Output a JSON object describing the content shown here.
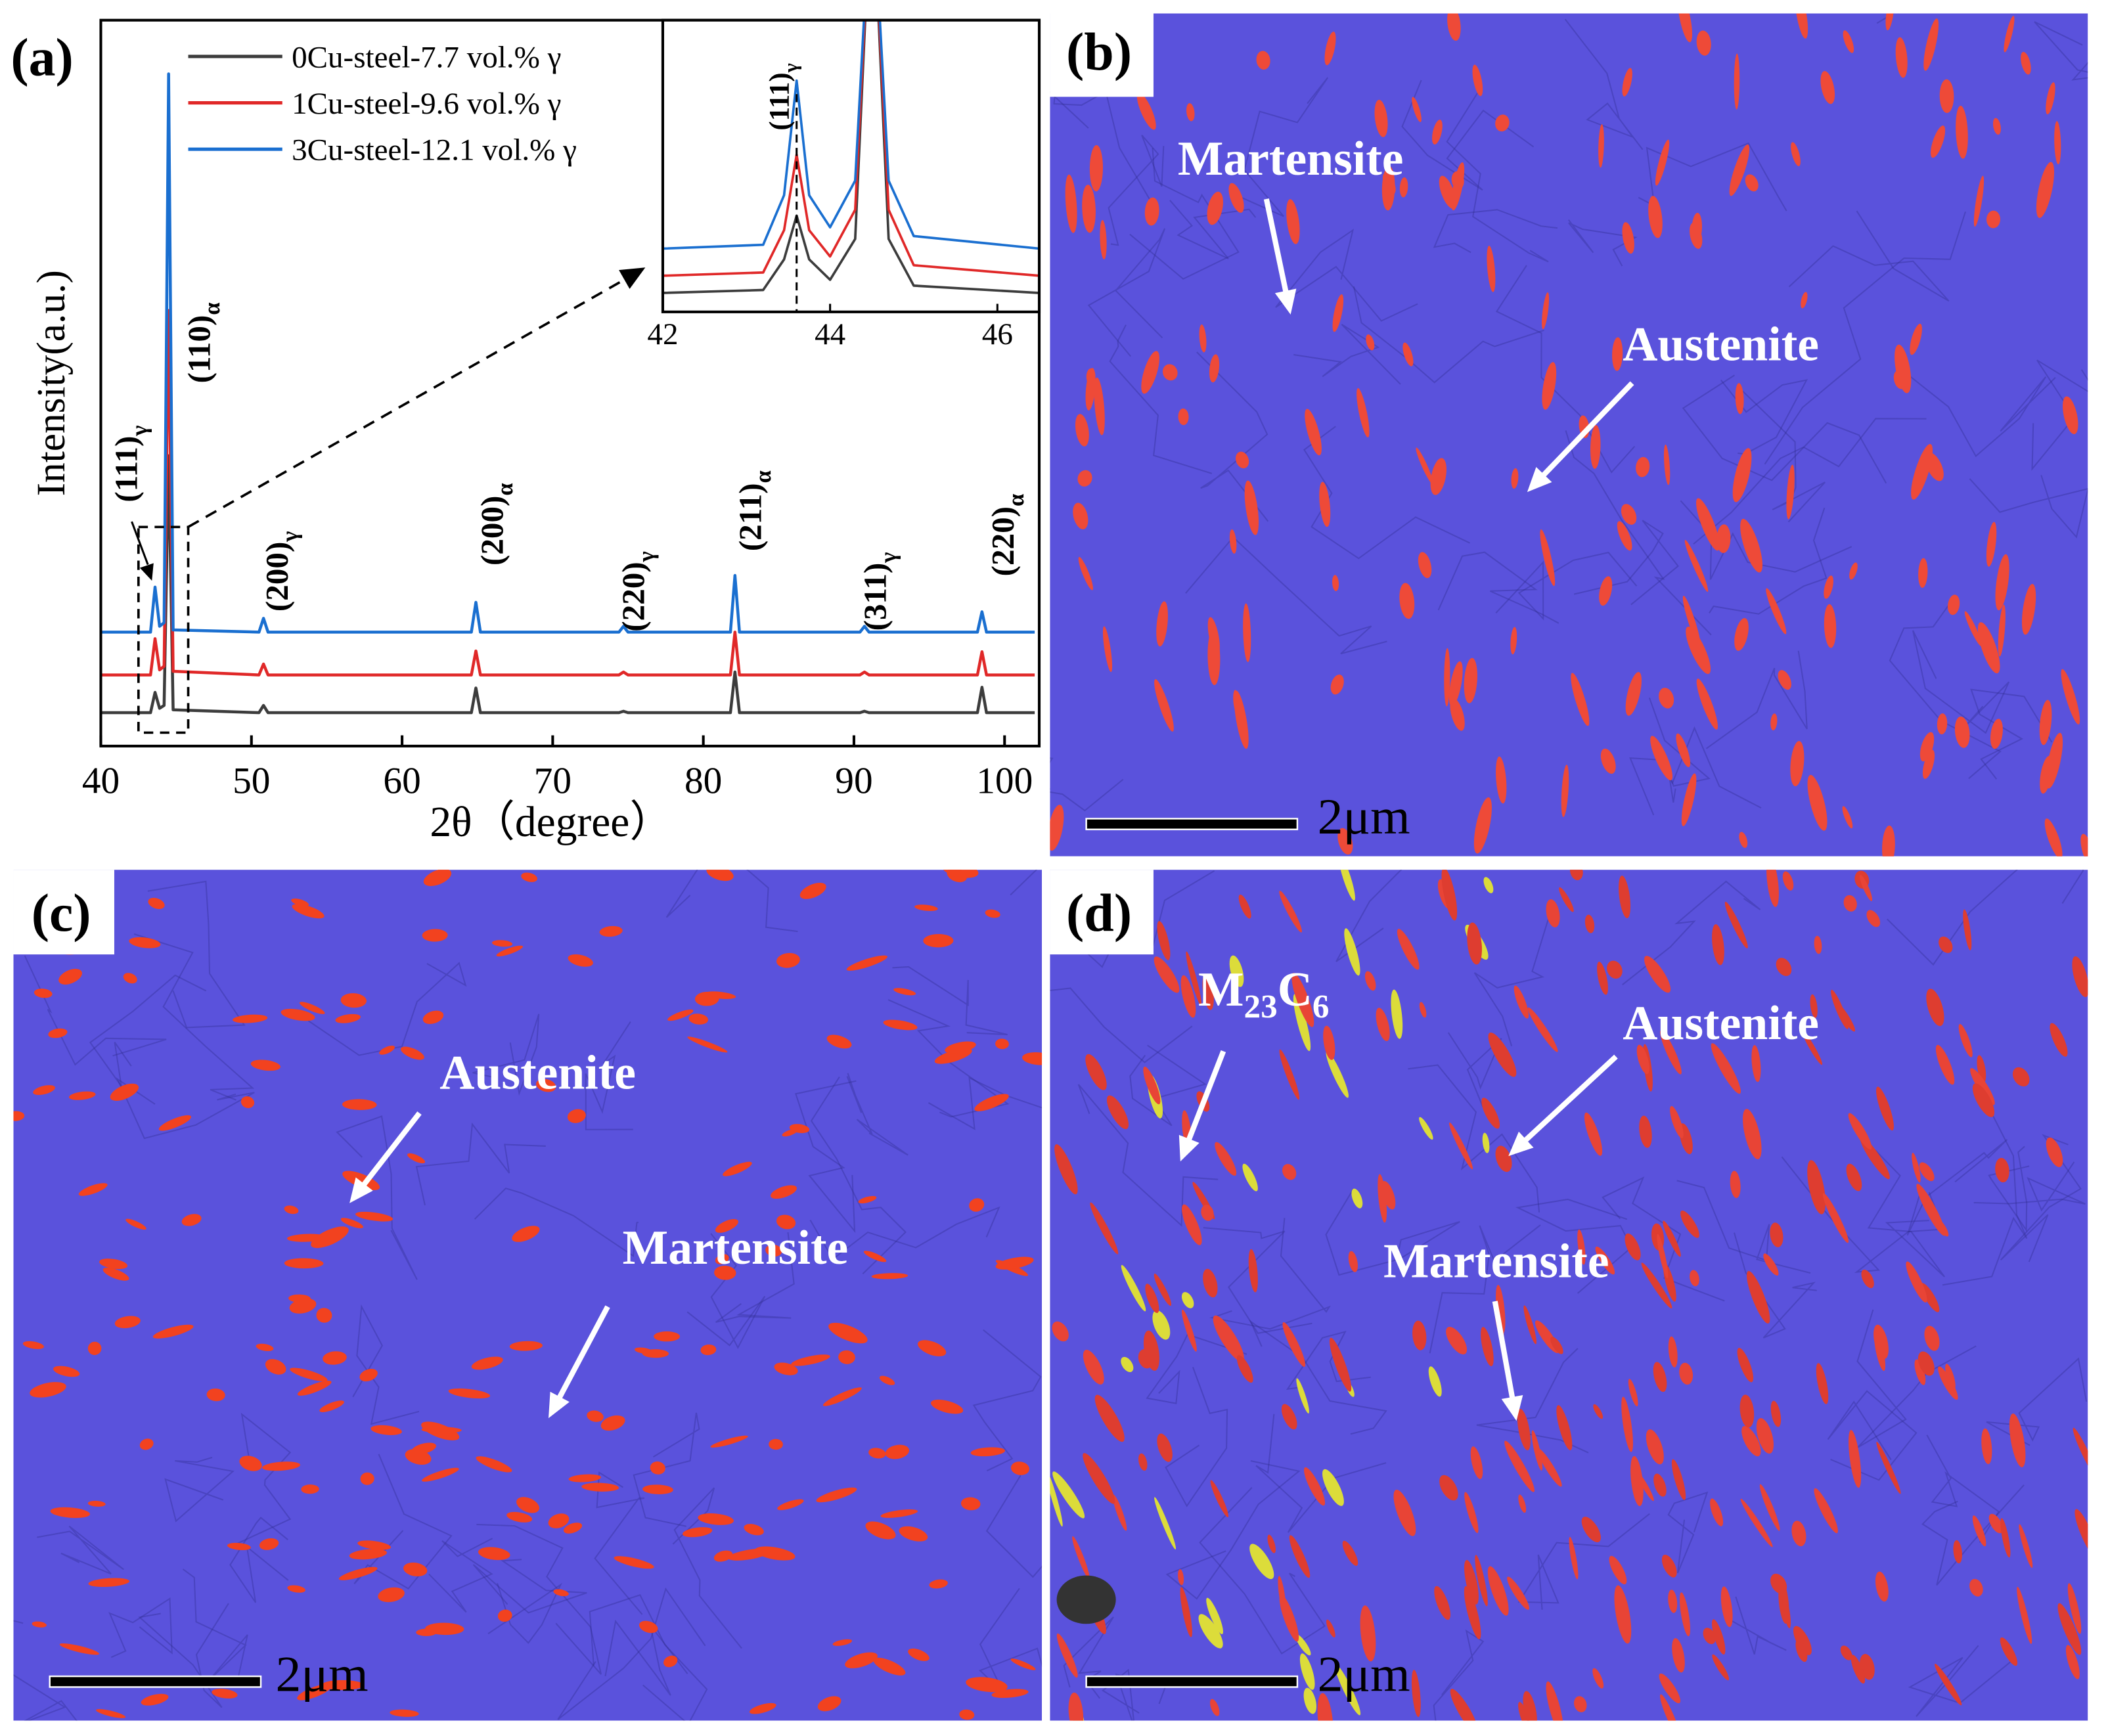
{
  "chart_data": [
    {
      "type": "line",
      "panel_label": "(a)",
      "x_label": "2θ（degree）",
      "y_label": "Intensity(a.u.)",
      "x": [
        40,
        43.3,
        43.6,
        43.9,
        44.2,
        44.5,
        44.8,
        50.5,
        50.8,
        51.1,
        64.6,
        64.9,
        65.2,
        74.4,
        74.7,
        75.0,
        81.8,
        82.1,
        82.4,
        90.4,
        90.7,
        91.0,
        98.2,
        98.5,
        98.8,
        102
      ],
      "series": [
        {
          "name": "0Cu-steel-7.7 vol.% γ",
          "color": "#3c3c3c",
          "values": [
            4.6,
            4.6,
            7.4,
            5.2,
            5.6,
            40,
            5,
            4.6,
            5.6,
            4.6,
            4.6,
            8,
            4.6,
            4.6,
            4.8,
            4.6,
            4.6,
            10.2,
            4.6,
            4.6,
            4.8,
            4.6,
            4.6,
            8.1,
            4.6,
            4.6
          ]
        },
        {
          "name": "1Cu-steel-9.6 vol.% γ",
          "color": "#e02828",
          "values": [
            9.8,
            9.8,
            14.8,
            10.5,
            11,
            60,
            10.3,
            9.8,
            11.3,
            9.8,
            9.8,
            13.1,
            9.8,
            9.8,
            10.2,
            9.8,
            9.8,
            15.7,
            9.8,
            9.8,
            10.2,
            9.8,
            9.8,
            13,
            9.8,
            9.8
          ]
        },
        {
          "name": "3Cu-steel-12.1 vol.% γ",
          "color": "#1a6fd0",
          "values": [
            15.7,
            15.7,
            21.9,
            16.5,
            17,
            92.6,
            16,
            15.7,
            17.6,
            15.7,
            15.7,
            19.8,
            15.7,
            15.7,
            16.5,
            15.7,
            15.7,
            23.5,
            15.7,
            15.7,
            16.5,
            15.7,
            15.7,
            18.5,
            15.7,
            15.7
          ]
        }
      ],
      "xlim": [
        40,
        102.3
      ],
      "xticks": [
        40,
        50,
        60,
        70,
        80,
        90,
        100
      ],
      "ylim": [
        0,
        100
      ],
      "legend": "upper left",
      "annotations": [
        {
          "label": "(111)",
          "sub": "γ"
        },
        {
          "label": "(110)",
          "sub": "α"
        },
        {
          "label": "(200)",
          "sub": "γ"
        },
        {
          "label": "(200)",
          "sub": "α"
        },
        {
          "label": "(220)",
          "sub": "γ"
        },
        {
          "label": "(211)",
          "sub": "α"
        },
        {
          "label": "(311)",
          "sub": "γ"
        },
        {
          "label": "(220)",
          "sub": "α"
        }
      ]
    },
    {
      "type": "line",
      "x": [
        42,
        43.2,
        43.45,
        43.6,
        43.75,
        44.0,
        44.3,
        44.5,
        44.7,
        45.0,
        46.5
      ],
      "series": [
        {
          "color": "#3c3c3c",
          "values": [
            6.5,
            7.5,
            18,
            33,
            18,
            11,
            25,
            150,
            25,
            9,
            6.5
          ]
        },
        {
          "color": "#e02828",
          "values": [
            12.4,
            13.5,
            28,
            53.9,
            28,
            19,
            35,
            150,
            35,
            16,
            12.4
          ]
        },
        {
          "color": "#1a6fd0",
          "values": [
            21.7,
            23,
            40,
            79.3,
            40,
            29,
            45,
            150,
            45,
            26,
            21.7
          ]
        }
      ],
      "xlim": [
        42,
        46.5
      ],
      "xticks": [
        42,
        44,
        46
      ],
      "ylim": [
        0,
        100
      ],
      "vline": 43.6,
      "annotations": [
        {
          "label": "(111)",
          "sub": "γ"
        }
      ]
    }
  ],
  "panels": [
    {
      "label": "(b)",
      "annotations": [
        {
          "text": [
            "Martensite"
          ]
        },
        {
          "text": [
            "Austenite"
          ]
        }
      ],
      "scale_bar": "2μm"
    },
    {
      "label": "(c)",
      "annotations": [
        {
          "text": [
            "Austenite"
          ]
        },
        {
          "text": [
            "Martensite"
          ]
        }
      ],
      "scale_bar": "2μm"
    },
    {
      "label": "(d)",
      "annotations": [
        {
          "text": [
            "M",
            "23",
            "C",
            "6"
          ]
        },
        {
          "text": [
            "Austenite"
          ]
        },
        {
          "text": [
            "Martensite"
          ]
        }
      ],
      "scale_bar": "2μm"
    }
  ]
}
